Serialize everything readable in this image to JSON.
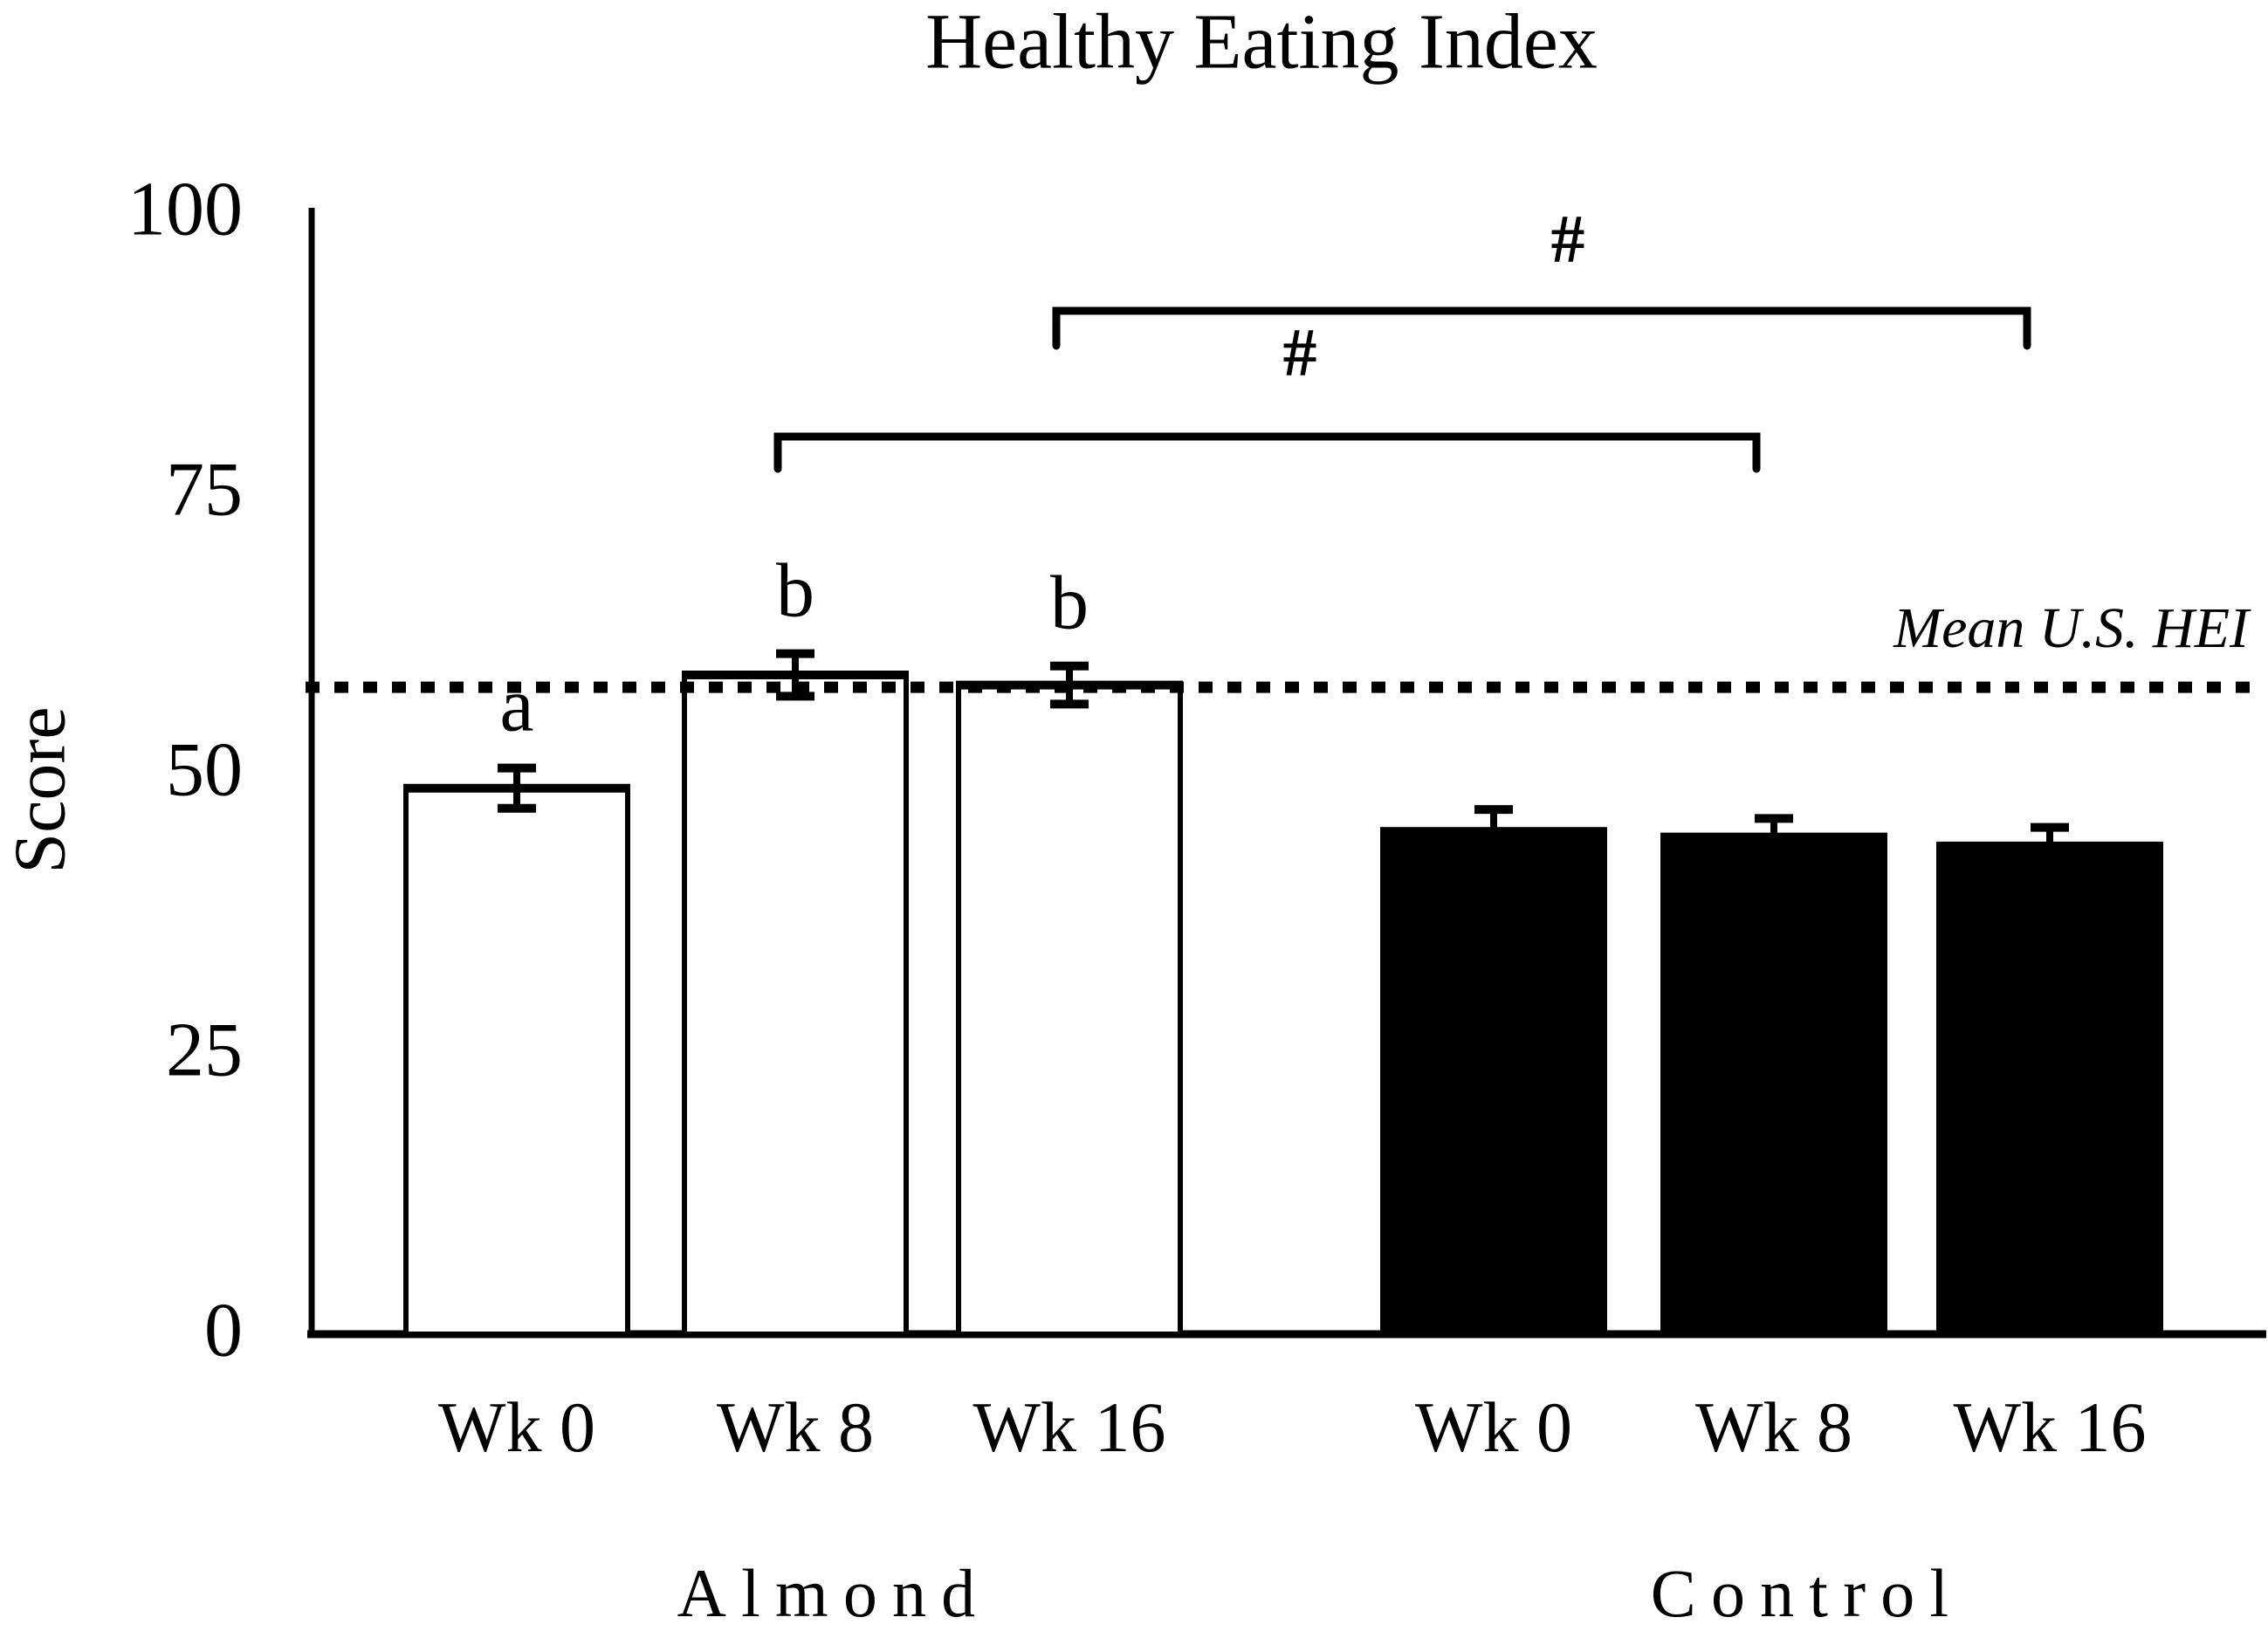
{
  "figure": {
    "title": "Healthy Eating Index",
    "y_axis_label": "Score",
    "reference_line_label": "Mean U.S. HEI"
  },
  "chart_data": {
    "type": "bar",
    "title": "Healthy Eating Index",
    "xlabel": "",
    "ylabel": "Score",
    "ylim": [
      0,
      100
    ],
    "yticks": [
      0,
      25,
      50,
      75,
      100
    ],
    "grid": false,
    "legend": false,
    "categories": [
      "Wk 0",
      "Wk 8",
      "Wk 16"
    ],
    "series": [
      {
        "name": "Almond",
        "fill": "#ffffff",
        "values": [
          48.7,
          58.8,
          57.9
        ],
        "errors": [
          1.8,
          1.9,
          1.7
        ],
        "sig_letters": [
          "a",
          "b",
          "b"
        ]
      },
      {
        "name": "Control",
        "fill": "#000000",
        "values": [
          45.0,
          44.5,
          43.7
        ],
        "errors": [
          1.8,
          1.5,
          1.5
        ],
        "sig_letters": [
          "",
          "",
          ""
        ]
      }
    ],
    "reference_line": {
      "value": 57.7,
      "label": "Mean U.S. HEI",
      "style": "dotted"
    },
    "significance_brackets": [
      {
        "symbol": "#",
        "from_series": "Almond",
        "from_category": "Wk 8",
        "to_series": "Control",
        "to_category": "Wk 8"
      },
      {
        "symbol": "#",
        "from_series": "Almond",
        "from_category": "Wk 16",
        "to_series": "Control",
        "to_category": "Wk 16"
      }
    ],
    "colors": {
      "axis": "#000000",
      "background": "#ffffff",
      "bar_outline": "#000000"
    }
  }
}
